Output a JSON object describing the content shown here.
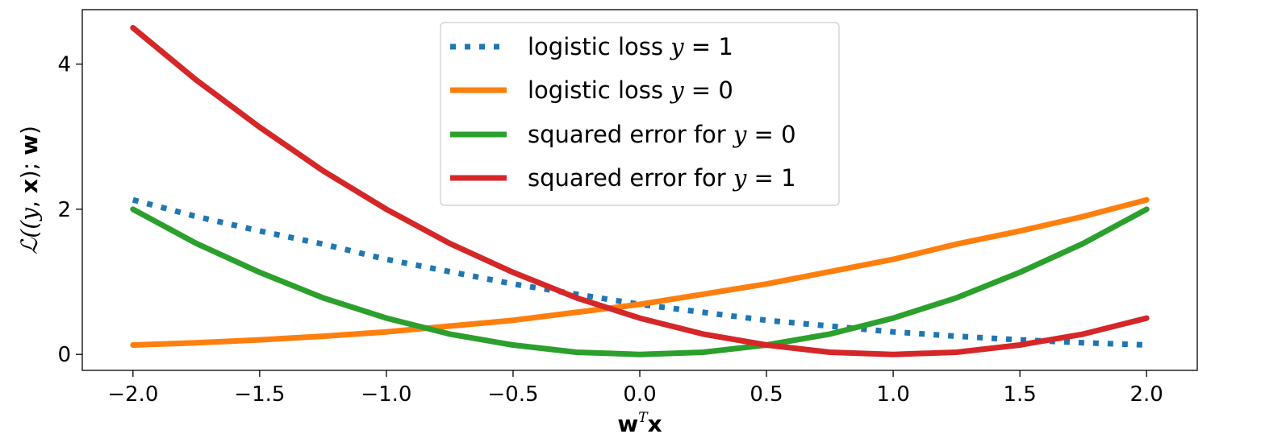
{
  "chart_data": {
    "type": "line",
    "title": "",
    "xlabel": {
      "main": "w",
      "sup": "T",
      "tail": "x"
    },
    "ylabel": {
      "prefix": "ℒ((",
      "y": "y",
      "comma": ", ",
      "x": "x",
      "mid": "); ",
      "w": "w",
      "suffix": ")"
    },
    "xlim": [
      -2.2,
      2.2
    ],
    "ylim": [
      -0.22,
      4.75
    ],
    "xticks": [
      -2.0,
      -1.5,
      -1.0,
      -0.5,
      0.0,
      0.5,
      1.0,
      1.5,
      2.0
    ],
    "xtick_labels": [
      "−2.0",
      "−1.5",
      "−1.0",
      "−0.5",
      "0.0",
      "0.5",
      "1.0",
      "1.5",
      "2.0"
    ],
    "yticks": [
      0,
      2,
      4
    ],
    "ytick_labels": [
      "0",
      "2",
      "4"
    ],
    "grid": false,
    "legend_position": "top-center",
    "x": [
      -2.0,
      -1.75,
      -1.5,
      -1.25,
      -1.0,
      -0.75,
      -0.5,
      -0.25,
      0.0,
      0.25,
      0.5,
      0.75,
      1.0,
      1.25,
      1.5,
      1.75,
      2.0
    ],
    "series": [
      {
        "name": "logistic loss",
        "legend_math": "y = 1",
        "color": "#1f77b4",
        "style": "dotted",
        "values": [
          2.13,
          1.9,
          1.7,
          1.52,
          1.31,
          1.14,
          0.97,
          0.83,
          0.69,
          0.58,
          0.47,
          0.39,
          0.31,
          0.25,
          0.2,
          0.16,
          0.13
        ]
      },
      {
        "name": "logistic loss",
        "legend_math": "y = 0",
        "color": "#ff7f0e",
        "style": "solid",
        "values": [
          0.13,
          0.16,
          0.2,
          0.25,
          0.31,
          0.39,
          0.47,
          0.58,
          0.69,
          0.83,
          0.97,
          1.14,
          1.31,
          1.52,
          1.7,
          1.9,
          2.13
        ]
      },
      {
        "name": "squared error for",
        "legend_math": "y = 0",
        "color": "#2ca02c",
        "style": "solid",
        "values": [
          2.0,
          1.53,
          1.13,
          0.78,
          0.5,
          0.28,
          0.13,
          0.03,
          0.0,
          0.03,
          0.13,
          0.28,
          0.5,
          0.78,
          1.13,
          1.53,
          2.0
        ]
      },
      {
        "name": "squared error for",
        "legend_math": "y = 1",
        "color": "#d62728",
        "style": "solid",
        "values": [
          4.5,
          3.78,
          3.13,
          2.53,
          2.0,
          1.53,
          1.13,
          0.78,
          0.5,
          0.28,
          0.13,
          0.03,
          0.0,
          0.03,
          0.13,
          0.28,
          0.5
        ]
      }
    ]
  }
}
